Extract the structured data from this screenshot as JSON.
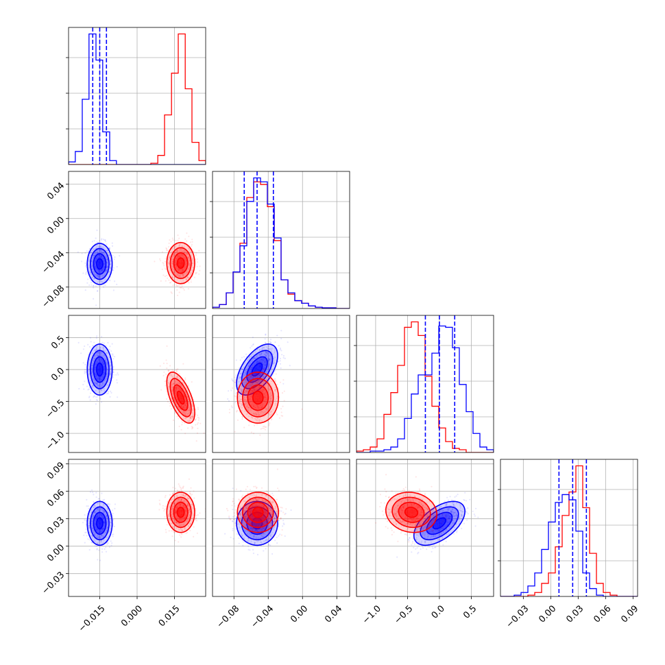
{
  "chart_data": {
    "type": "corner",
    "grid": true,
    "series": [
      {
        "color": "#0000ff",
        "mean": [
          -0.015,
          -0.053,
          0.0,
          0.025
        ],
        "std": [
          0.0025,
          0.012,
          0.2,
          0.012
        ],
        "correlations": {
          "2-1": 0.55,
          "3-2": 0.55
        },
        "quantiles": [
          [
            -0.0178,
            -0.015,
            -0.0123
          ],
          [
            -0.068,
            -0.053,
            -0.034
          ],
          [
            -0.22,
            0.0,
            0.24
          ],
          [
            0.009,
            0.024,
            0.039
          ]
        ]
      },
      {
        "color": "#ff0000",
        "mean": [
          0.0175,
          -0.052,
          -0.44,
          0.037
        ],
        "std": [
          0.0028,
          0.012,
          0.2,
          0.011
        ],
        "correlations": {
          "2-0": -0.6,
          "3-2": -0.1
        }
      }
    ],
    "parameters": [
      {
        "range": [
          -0.0275,
          0.0275
        ],
        "ticks": [
          -0.015,
          0.0,
          0.015
        ],
        "tick_labels": [
          "−0.015",
          "0.000",
          "0.015"
        ]
      },
      {
        "range": [
          -0.105,
          0.055
        ],
        "ticks": [
          -0.08,
          -0.04,
          0.0,
          0.04
        ],
        "tick_labels": [
          "−0.08",
          "−0.04",
          "0.00",
          "0.04"
        ]
      },
      {
        "range": [
          -1.3,
          0.85
        ],
        "ticks": [
          -1.0,
          -0.5,
          0.0,
          0.5
        ],
        "tick_labels": [
          "−1.0",
          "−0.5",
          "0.0",
          "0.5"
        ]
      },
      {
        "range": [
          -0.055,
          0.095
        ],
        "ticks": [
          -0.03,
          0.0,
          0.03,
          0.06,
          0.09
        ],
        "tick_labels": [
          "−0.03",
          "0.00",
          "0.03",
          "0.06",
          "0.09"
        ]
      }
    ],
    "histograms": [
      {
        "edges": [
          -0.0275,
          -0.0248,
          -0.022,
          -0.0193,
          -0.0165,
          -0.0138,
          -0.011,
          -0.0083,
          -0.0055,
          -0.0028,
          0.0,
          0.0028,
          0.0055,
          0.0083,
          0.011,
          0.0138,
          0.0165,
          0.0193,
          0.022,
          0.0248,
          0.0275
        ],
        "blue": [
          2,
          10,
          50,
          100,
          80,
          25,
          3,
          0,
          0,
          0,
          0,
          0,
          0,
          0,
          0,
          0,
          0,
          0,
          0,
          0
        ],
        "red": [
          0,
          0,
          0,
          0,
          0,
          0,
          0,
          0,
          0,
          0,
          0,
          0,
          1,
          7,
          38,
          70,
          100,
          58,
          17,
          3
        ]
      },
      {
        "edges": [
          -0.105,
          -0.097,
          -0.089,
          -0.081,
          -0.073,
          -0.065,
          -0.057,
          -0.049,
          -0.041,
          -0.033,
          -0.025,
          -0.017,
          -0.009,
          -0.001,
          0.007,
          0.015,
          0.023,
          0.031,
          0.039,
          0.047,
          0.055
        ],
        "blue": [
          1,
          3,
          12,
          28,
          48,
          82,
          100,
          97,
          80,
          54,
          22,
          12,
          6,
          4,
          2,
          1,
          0.5,
          0.5,
          0,
          0
        ],
        "red": [
          1,
          3,
          12,
          28,
          50,
          85,
          97,
          95,
          78,
          52,
          22,
          11,
          6,
          4,
          2,
          1,
          0.5,
          0.5,
          0,
          0
        ]
      },
      {
        "edges": [
          -1.3,
          -1.1925,
          -1.085,
          -0.9775,
          -0.87,
          -0.7625,
          -0.655,
          -0.5475,
          -0.44,
          -0.3325,
          -0.225,
          -0.1175,
          -0.01,
          0.0975,
          0.205,
          0.3125,
          0.42,
          0.5275,
          0.635,
          0.7425,
          0.85
        ],
        "blue": [
          0,
          0,
          1,
          1,
          2,
          4,
          10,
          25,
          43,
          57,
          57,
          73,
          93,
          92,
          77,
          50,
          30,
          14,
          4,
          2
        ],
        "red": [
          1,
          2,
          4,
          10,
          28,
          44,
          64,
          92,
          96,
          86,
          56,
          34,
          18,
          8,
          3,
          2,
          0,
          0,
          0,
          0
        ]
      },
      {
        "edges": [
          -0.055,
          -0.0475,
          -0.04,
          -0.0325,
          -0.025,
          -0.0175,
          -0.01,
          -0.0025,
          0.005,
          0.0125,
          0.02,
          0.0275,
          0.035,
          0.0425,
          0.05,
          0.0575,
          0.065,
          0.0725,
          0.08,
          0.0875,
          0.095
        ],
        "blue": [
          0,
          0,
          1,
          3,
          8,
          18,
          36,
          57,
          72,
          78,
          74,
          50,
          18,
          6,
          1,
          0,
          0,
          0,
          0,
          0
        ],
        "red": [
          0,
          0,
          0,
          0,
          1,
          3,
          10,
          18,
          38,
          62,
          80,
          100,
          68,
          33,
          10,
          3,
          1,
          0,
          0,
          0
        ]
      }
    ]
  }
}
